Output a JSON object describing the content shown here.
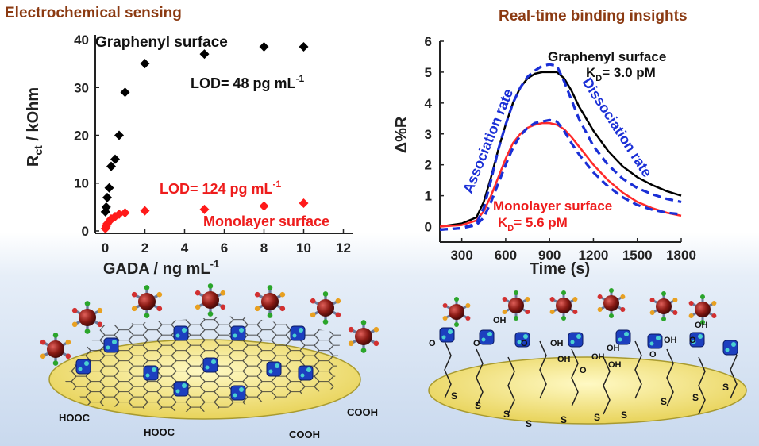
{
  "titles": {
    "left": "Electrochemical sensing",
    "right": "Real-time binding insights"
  },
  "chart_data": [
    {
      "type": "scatter",
      "xlabel": "GADA / ng mL",
      "xlabel_sup": "-1",
      "ylabel": "R",
      "ylabel_sub": "ct",
      "ylabel_rest": " / kOhm",
      "xlim": [
        -0.5,
        12.5
      ],
      "ylim": [
        -0.5,
        41
      ],
      "xticks": [
        0,
        2,
        4,
        6,
        8,
        10,
        12
      ],
      "yticks": [
        0,
        10,
        20,
        30,
        40
      ],
      "series": [
        {
          "name": "Graphenyl surface",
          "color": "#000000",
          "x": [
            0.01,
            0.05,
            0.1,
            0.2,
            0.3,
            0.5,
            0.7,
            1.0,
            2,
            5,
            8,
            10
          ],
          "y": [
            4.0,
            5.0,
            7.0,
            9.0,
            13.5,
            15.0,
            20.0,
            29.0,
            35.0,
            37.0,
            38.5,
            38.5
          ]
        },
        {
          "name": "Monolayer surface",
          "color": "#ff1a1a",
          "x": [
            0.01,
            0.05,
            0.1,
            0.2,
            0.3,
            0.5,
            0.7,
            1.0,
            2,
            5,
            8,
            10
          ],
          "y": [
            0.5,
            1.0,
            1.5,
            2.0,
            2.5,
            3.0,
            3.5,
            3.8,
            4.2,
            4.5,
            5.2,
            5.8
          ]
        }
      ],
      "annotations": {
        "graphenyl_label": "Graphenyl surface",
        "lod_graphenyl": "LOD= 48 pg mL",
        "lod_graphenyl_sup": "-1",
        "lod_monolayer": "LOD= 124 pg mL",
        "lod_monolayer_sup": "-1",
        "monolayer_label": "Monolayer surface"
      }
    },
    {
      "type": "line",
      "xlabel": "Time (s)",
      "ylabel": "Δ%R",
      "xlim": [
        150,
        1800
      ],
      "ylim": [
        -0.5,
        6
      ],
      "xticks": [
        300,
        600,
        900,
        1200,
        1500,
        1800
      ],
      "yticks": [
        0,
        1,
        2,
        3,
        4,
        5,
        6
      ],
      "series": [
        {
          "name": "Graphenyl surface",
          "color": "#000000",
          "x": [
            150,
            300,
            400,
            450,
            500,
            550,
            600,
            650,
            700,
            750,
            800,
            850,
            900,
            950,
            1000,
            1050,
            1100,
            1200,
            1300,
            1400,
            1500,
            1600,
            1700,
            1800
          ],
          "y": [
            0,
            0.1,
            0.3,
            0.8,
            1.6,
            2.5,
            3.3,
            4.0,
            4.5,
            4.8,
            4.95,
            5.0,
            5.0,
            5.0,
            4.8,
            4.4,
            3.9,
            3.1,
            2.45,
            1.95,
            1.6,
            1.35,
            1.15,
            1.0
          ]
        },
        {
          "name": "Monolayer surface",
          "color": "#ff2a2a",
          "x": [
            150,
            300,
            400,
            450,
            500,
            550,
            600,
            650,
            700,
            750,
            800,
            850,
            900,
            950,
            1000,
            1050,
            1100,
            1200,
            1300,
            1400,
            1500,
            1600,
            1700,
            1800
          ],
          "y": [
            0,
            0.05,
            0.2,
            0.5,
            1.0,
            1.6,
            2.2,
            2.7,
            3.0,
            3.2,
            3.3,
            3.35,
            3.35,
            3.3,
            3.15,
            2.9,
            2.6,
            2.0,
            1.5,
            1.1,
            0.8,
            0.6,
            0.45,
            0.35
          ]
        },
        {
          "name": "Fit graphenyl",
          "color": "#1a2fd6",
          "x": [
            150,
            300,
            400,
            450,
            500,
            550,
            600,
            650,
            700,
            750,
            800,
            850,
            900,
            950,
            1000,
            1050,
            1100,
            1200,
            1300,
            1400,
            1500,
            1600,
            1700,
            1800
          ],
          "y": [
            -0.1,
            -0.05,
            0.1,
            0.6,
            1.5,
            2.5,
            3.3,
            4.0,
            4.5,
            4.85,
            5.05,
            5.2,
            5.25,
            5.2,
            4.7,
            4.1,
            3.5,
            2.6,
            2.0,
            1.55,
            1.25,
            1.05,
            0.9,
            0.8
          ]
        },
        {
          "name": "Fit monolayer",
          "color": "#1a2fd6",
          "x": [
            150,
            300,
            400,
            450,
            500,
            550,
            600,
            650,
            700,
            750,
            800,
            850,
            900,
            950,
            1000,
            1050,
            1100,
            1200,
            1300,
            1400,
            1500,
            1600,
            1700,
            1800
          ],
          "y": [
            -0.1,
            -0.05,
            0.05,
            0.3,
            0.8,
            1.4,
            2.0,
            2.55,
            2.95,
            3.2,
            3.35,
            3.4,
            3.45,
            3.4,
            3.1,
            2.7,
            2.35,
            1.75,
            1.3,
            0.95,
            0.7,
            0.55,
            0.45,
            0.4
          ]
        }
      ],
      "annotations": {
        "graphenyl_label": "Graphenyl surface",
        "kd_graphenyl_k": "K",
        "kd_graphenyl_sub": "D",
        "kd_graphenyl_val": "= 3.0 pM",
        "association": "Association rate",
        "dissociation": "Dissociation rate",
        "monolayer_label": "Monolayer surface",
        "kd_monolayer_k": "K",
        "kd_monolayer_sub": "D",
        "kd_monolayer_val": "= 5.6 pM"
      }
    }
  ],
  "illustrations": {
    "left": {
      "labels": [
        "HOOC",
        "HOOC",
        "COOH",
        "COOH"
      ]
    },
    "right": {
      "labels": [
        "OH",
        "OH",
        "OH",
        "OH",
        "OH",
        "OH",
        "OH",
        "OH",
        "O",
        "O",
        "O",
        "O",
        "O",
        "O",
        "S",
        "S",
        "S",
        "S",
        "S",
        "S",
        "S",
        "S",
        "S",
        "S"
      ]
    }
  }
}
